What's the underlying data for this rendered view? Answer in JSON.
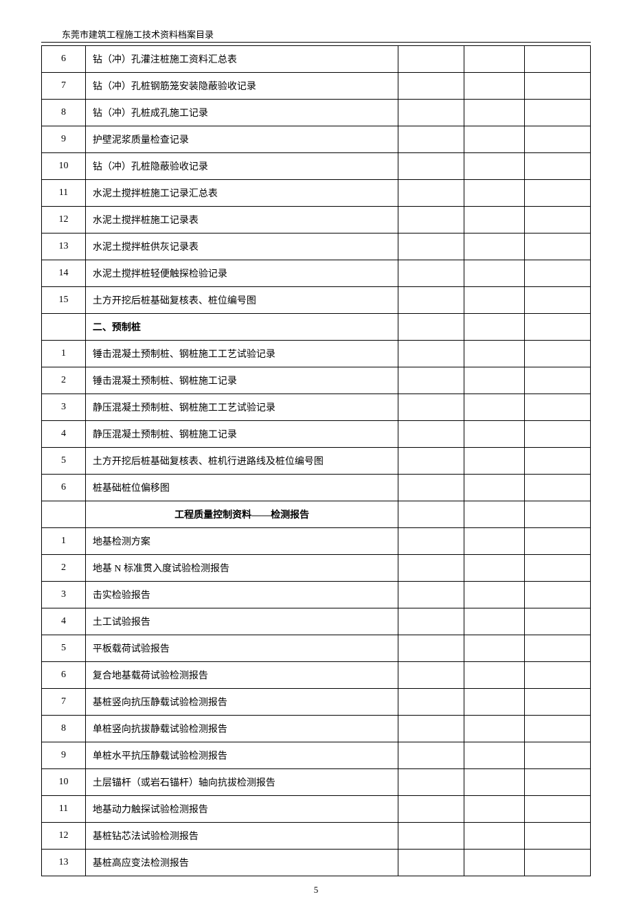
{
  "header": "东莞市建筑工程施工技术资料档案目录",
  "pageNumber": "5",
  "rows": [
    {
      "num": "6",
      "desc": "钻（冲）孔灌注桩施工资料汇总表",
      "bold": false,
      "center": false
    },
    {
      "num": "7",
      "desc": "钻（冲）孔桩钢筋笼安装隐蔽验收记录",
      "bold": false,
      "center": false
    },
    {
      "num": "8",
      "desc": "钻（冲）孔桩成孔施工记录",
      "bold": false,
      "center": false
    },
    {
      "num": "9",
      "desc": "护壁泥浆质量检查记录",
      "bold": false,
      "center": false
    },
    {
      "num": "10",
      "desc": "钻（冲）孔桩隐蔽验收记录",
      "bold": false,
      "center": false
    },
    {
      "num": "11",
      "desc": "水泥土搅拌桩施工记录汇总表",
      "bold": false,
      "center": false
    },
    {
      "num": "12",
      "desc": "水泥土搅拌桩施工记录表",
      "bold": false,
      "center": false
    },
    {
      "num": "13",
      "desc": "水泥土搅拌桩供灰记录表",
      "bold": false,
      "center": false
    },
    {
      "num": "14",
      "desc": "水泥土搅拌桩轻便触探检验记录",
      "bold": false,
      "center": false
    },
    {
      "num": "15",
      "desc": "土方开挖后桩基础复核表、桩位编号图",
      "bold": false,
      "center": false
    },
    {
      "num": "",
      "desc": "二、预制桩",
      "bold": true,
      "center": false
    },
    {
      "num": "1",
      "desc": "锤击混凝土预制桩、钢桩施工工艺试验记录",
      "bold": false,
      "center": false
    },
    {
      "num": "2",
      "desc": "锤击混凝土预制桩、钢桩施工记录",
      "bold": false,
      "center": false
    },
    {
      "num": "3",
      "desc": "静压混凝土预制桩、钢桩施工工艺试验记录",
      "bold": false,
      "center": false
    },
    {
      "num": "4",
      "desc": "静压混凝土预制桩、钢桩施工记录",
      "bold": false,
      "center": false
    },
    {
      "num": "5",
      "desc": "土方开挖后桩基础复核表、桩机行进路线及桩位编号图",
      "bold": false,
      "center": false
    },
    {
      "num": "6",
      "desc": "桩基础桩位偏移图",
      "bold": false,
      "center": false
    },
    {
      "num": "",
      "desc": "工程质量控制资料——检测报告",
      "bold": true,
      "center": true
    },
    {
      "num": "1",
      "desc": "地基检测方案",
      "bold": false,
      "center": false
    },
    {
      "num": "2",
      "desc": "地基 N 标准贯入度试验检测报告",
      "bold": false,
      "center": false
    },
    {
      "num": "3",
      "desc": "击实检验报告",
      "bold": false,
      "center": false
    },
    {
      "num": "4",
      "desc": "土工试验报告",
      "bold": false,
      "center": false
    },
    {
      "num": "5",
      "desc": "平板载荷试验报告",
      "bold": false,
      "center": false
    },
    {
      "num": "6",
      "desc": "复合地基载荷试验检测报告",
      "bold": false,
      "center": false
    },
    {
      "num": "7",
      "desc": "基桩竖向抗压静载试验检测报告",
      "bold": false,
      "center": false
    },
    {
      "num": "8",
      "desc": "单桩竖向抗拔静载试验检测报告",
      "bold": false,
      "center": false
    },
    {
      "num": "9",
      "desc": "单桩水平抗压静载试验检测报告",
      "bold": false,
      "center": false
    },
    {
      "num": "10",
      "desc": "土层锚杆（或岩石锚杆）轴向抗拔检测报告",
      "bold": false,
      "center": false
    },
    {
      "num": "11",
      "desc": "地基动力触探试验检测报告",
      "bold": false,
      "center": false
    },
    {
      "num": "12",
      "desc": "基桩钻芯法试验检测报告",
      "bold": false,
      "center": false
    },
    {
      "num": "13",
      "desc": "基桩高应变法检测报告",
      "bold": false,
      "center": false
    }
  ]
}
